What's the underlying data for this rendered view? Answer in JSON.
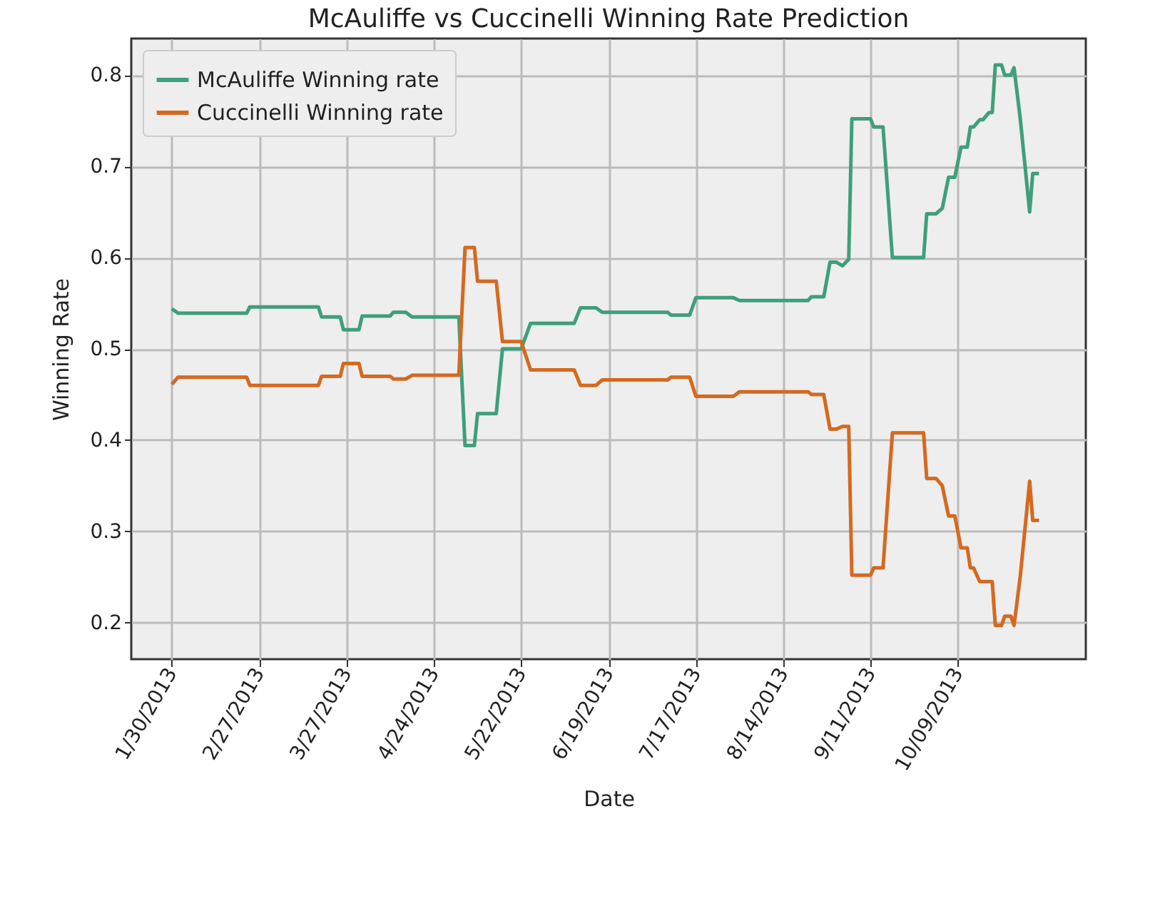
{
  "chart_data": {
    "type": "line",
    "title": "McAuliffe vs Cuccinelli Winning Rate Prediction",
    "xlabel": "Date",
    "ylabel": "Winning Rate",
    "x": [
      "2013-01-30",
      "2013-02-01",
      "2013-02-23",
      "2013-02-24",
      "2013-03-18",
      "2013-03-19",
      "2013-03-25",
      "2013-03-26",
      "2013-03-31",
      "2013-04-01",
      "2013-04-10",
      "2013-04-11",
      "2013-04-15",
      "2013-04-17",
      "2013-05-02",
      "2013-05-04",
      "2013-05-07",
      "2013-05-08",
      "2013-05-14",
      "2013-05-16",
      "2013-05-22",
      "2013-05-25",
      "2013-06-08",
      "2013-06-10",
      "2013-06-15",
      "2013-06-17",
      "2013-07-08",
      "2013-07-09",
      "2013-07-15",
      "2013-07-17",
      "2013-07-29",
      "2013-07-31",
      "2013-08-22",
      "2013-08-23",
      "2013-08-27",
      "2013-08-29",
      "2013-08-31",
      "2013-09-02",
      "2013-09-04",
      "2013-09-05",
      "2013-09-11",
      "2013-09-12",
      "2013-09-15",
      "2013-09-18",
      "2013-09-28",
      "2013-09-29",
      "2013-10-02",
      "2013-10-04",
      "2013-10-06",
      "2013-10-08",
      "2013-10-10",
      "2013-10-12",
      "2013-10-13",
      "2013-10-14",
      "2013-10-16",
      "2013-10-17",
      "2013-10-19",
      "2013-10-20",
      "2013-10-21",
      "2013-10-23",
      "2013-10-24",
      "2013-10-26",
      "2013-10-27",
      "2013-10-29",
      "2013-11-01",
      "2013-11-02",
      "2013-11-04"
    ],
    "series": [
      {
        "name": "McAuliffe Winning rate",
        "color": "#3f9f7b",
        "values": [
          0.544,
          0.539,
          0.539,
          0.546,
          0.546,
          0.535,
          0.535,
          0.521,
          0.521,
          0.536,
          0.536,
          0.54,
          0.54,
          0.535,
          0.535,
          0.394,
          0.394,
          0.429,
          0.429,
          0.5,
          0.5,
          0.528,
          0.528,
          0.545,
          0.545,
          0.54,
          0.54,
          0.537,
          0.537,
          0.556,
          0.556,
          0.553,
          0.553,
          0.557,
          0.557,
          0.595,
          0.595,
          0.591,
          0.598,
          0.752,
          0.752,
          0.743,
          0.743,
          0.6,
          0.6,
          0.648,
          0.648,
          0.654,
          0.688,
          0.688,
          0.721,
          0.721,
          0.743,
          0.743,
          0.751,
          0.751,
          0.759,
          0.759,
          0.811,
          0.811,
          0.8,
          0.8,
          0.808,
          0.752,
          0.65,
          0.692,
          0.692
        ]
      },
      {
        "name": "Cuccinelli Winning rate",
        "color": "#d5691f",
        "values": [
          0.461,
          0.469,
          0.469,
          0.46,
          0.46,
          0.47,
          0.47,
          0.484,
          0.484,
          0.47,
          0.47,
          0.467,
          0.467,
          0.471,
          0.471,
          0.611,
          0.611,
          0.574,
          0.574,
          0.508,
          0.508,
          0.477,
          0.477,
          0.46,
          0.46,
          0.466,
          0.466,
          0.469,
          0.469,
          0.448,
          0.448,
          0.453,
          0.453,
          0.45,
          0.45,
          0.412,
          0.412,
          0.415,
          0.415,
          0.252,
          0.252,
          0.26,
          0.26,
          0.408,
          0.408,
          0.358,
          0.358,
          0.35,
          0.317,
          0.317,
          0.282,
          0.282,
          0.26,
          0.26,
          0.245,
          0.245,
          0.245,
          0.245,
          0.197,
          0.197,
          0.207,
          0.207,
          0.197,
          0.251,
          0.355,
          0.312,
          0.312
        ]
      }
    ],
    "xlim": [
      "2013-01-17",
      "2013-11-19"
    ],
    "xticks": [
      {
        "value": "2013-01-30",
        "label": "1/30/2013"
      },
      {
        "value": "2013-02-27",
        "label": "2/27/2013"
      },
      {
        "value": "2013-03-27",
        "label": "3/27/2013"
      },
      {
        "value": "2013-04-24",
        "label": "4/24/2013"
      },
      {
        "value": "2013-05-22",
        "label": "5/22/2013"
      },
      {
        "value": "2013-06-19",
        "label": "6/19/2013"
      },
      {
        "value": "2013-07-17",
        "label": "7/17/2013"
      },
      {
        "value": "2013-08-14",
        "label": "8/14/2013"
      },
      {
        "value": "2013-09-11",
        "label": "9/11/2013"
      },
      {
        "value": "2013-10-09",
        "label": "10/09/2013"
      }
    ],
    "ylim": [
      0.16,
      0.84
    ],
    "yticks": [
      0.2,
      0.3,
      0.4,
      0.5,
      0.6,
      0.7,
      0.8
    ],
    "grid": true,
    "legend": "top left"
  }
}
